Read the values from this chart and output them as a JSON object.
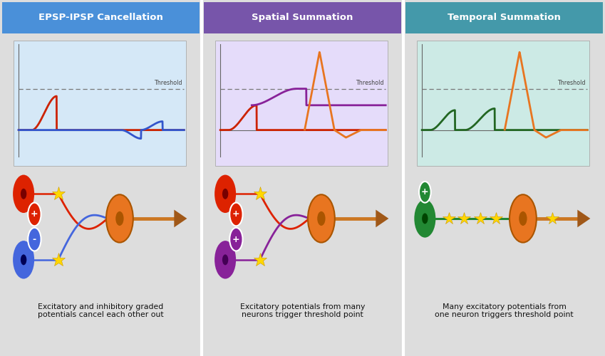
{
  "panels": [
    {
      "title": "EPSP-IPSP Cancellation",
      "title_bg": "#4A90D9",
      "bg_color": "#AFC8E8",
      "graph_bg": "#D5E8F7",
      "curve1_color": "#CC2200",
      "curve2_color": "#3355CC",
      "axon_color": "#CC7722",
      "neuron_color": "#E87520",
      "src1_color": "#DD2200",
      "src2_color": "#4466DD",
      "src1_sign": "+",
      "src2_sign": "-",
      "caption_pre": "Excitatory and inhibitory graded\npotentials ",
      "caption_bold": "cancel",
      "caption_post": " each other out",
      "panel_type": "cancellation"
    },
    {
      "title": "Spatial Summation",
      "title_bg": "#7755AA",
      "bg_color": "#D0C5E8",
      "graph_bg": "#E5DCFA",
      "curve1_color": "#CC2200",
      "curve2_color": "#882299",
      "axon_color": "#CC7722",
      "neuron_color": "#E87520",
      "src1_color": "#DD2200",
      "src2_color": "#882299",
      "src1_sign": "+",
      "src2_sign": "+",
      "caption_pre": "Excitatory potentials from ",
      "caption_bold": "many",
      "caption_post": "\nneurons trigger threshold point",
      "panel_type": "spatial"
    },
    {
      "title": "Temporal Summation",
      "title_bg": "#4499AA",
      "bg_color": "#A5D2C8",
      "graph_bg": "#CCEAE5",
      "curve1_color": "#226622",
      "curve2_color": "#226622",
      "axon_color": "#CC7722",
      "neuron_color": "#E87520",
      "src1_color": "#228833",
      "src2_color": null,
      "src1_sign": "+",
      "src2_sign": null,
      "caption_pre": "Many excitatory potentials from\n",
      "caption_bold": "one",
      "caption_post": " neuron triggers threshold point",
      "panel_type": "temporal"
    }
  ]
}
